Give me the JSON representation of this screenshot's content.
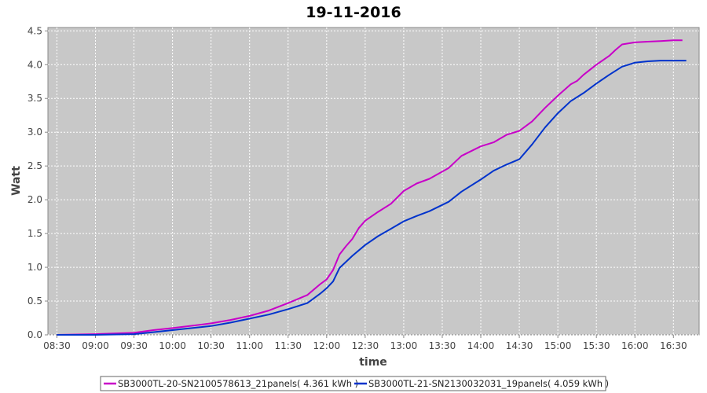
{
  "chart_data": {
    "type": "line",
    "title": "19-11-2016",
    "xlabel": "time",
    "ylabel": "Watt",
    "xlim": [
      "08:23",
      "16:50"
    ],
    "ylim": [
      0,
      4.55
    ],
    "x_ticks": [
      "08:30",
      "09:00",
      "09:30",
      "10:00",
      "10:30",
      "11:00",
      "11:30",
      "12:00",
      "12:30",
      "13:00",
      "13:30",
      "14:00",
      "14:30",
      "15:00",
      "15:30",
      "16:00",
      "16:30"
    ],
    "y_ticks": [
      "0.0",
      "0.5",
      "1.0",
      "1.5",
      "2.0",
      "2.5",
      "3.0",
      "3.5",
      "4.0",
      "4.5"
    ],
    "grid": true,
    "legend_position": "bottom",
    "background": "#c8c8c8",
    "series": [
      {
        "name": "SB3000TL-20-SN2100578613_21panels( 4.361 kWh )",
        "color": "#c800c8",
        "x": [
          "08:30",
          "09:00",
          "09:30",
          "09:45",
          "10:00",
          "10:30",
          "10:45",
          "11:00",
          "11:15",
          "11:30",
          "11:45",
          "11:55",
          "12:00",
          "12:05",
          "12:10",
          "12:15",
          "12:20",
          "12:25",
          "12:30",
          "12:40",
          "12:50",
          "13:00",
          "13:10",
          "13:20",
          "13:35",
          "13:45",
          "14:00",
          "14:10",
          "14:20",
          "14:30",
          "14:40",
          "14:50",
          "15:00",
          "15:10",
          "15:15",
          "15:20",
          "15:30",
          "15:40",
          "15:45",
          "15:50",
          "16:00",
          "16:10",
          "16:20",
          "16:30",
          "16:37"
        ],
        "y": [
          0.0,
          0.01,
          0.03,
          0.07,
          0.1,
          0.17,
          0.22,
          0.28,
          0.36,
          0.47,
          0.59,
          0.75,
          0.82,
          0.96,
          1.19,
          1.31,
          1.42,
          1.58,
          1.69,
          1.82,
          1.94,
          2.13,
          2.24,
          2.31,
          2.47,
          2.65,
          2.79,
          2.85,
          2.96,
          3.02,
          3.16,
          3.36,
          3.54,
          3.71,
          3.76,
          3.85,
          4.0,
          4.13,
          4.22,
          4.3,
          4.33,
          4.34,
          4.35,
          4.36,
          4.36
        ]
      },
      {
        "name": "SB3000TL-21-SN2130032031_19panels( 4.059 kWh )",
        "color": "#0033cc",
        "x": [
          "08:30",
          "09:00",
          "09:30",
          "09:45",
          "10:00",
          "10:30",
          "10:45",
          "11:00",
          "11:15",
          "11:30",
          "11:45",
          "11:55",
          "12:00",
          "12:05",
          "12:10",
          "12:20",
          "12:30",
          "12:40",
          "12:50",
          "13:00",
          "13:10",
          "13:20",
          "13:35",
          "13:45",
          "14:00",
          "14:10",
          "14:20",
          "14:30",
          "14:40",
          "14:50",
          "15:00",
          "15:10",
          "15:15",
          "15:20",
          "15:30",
          "15:40",
          "15:50",
          "15:55",
          "16:00",
          "16:10",
          "16:20",
          "16:30",
          "16:40"
        ],
        "y": [
          0.0,
          0.0,
          0.01,
          0.04,
          0.07,
          0.13,
          0.18,
          0.24,
          0.3,
          0.38,
          0.47,
          0.61,
          0.69,
          0.79,
          0.99,
          1.17,
          1.33,
          1.46,
          1.57,
          1.68,
          1.76,
          1.83,
          1.97,
          2.12,
          2.3,
          2.43,
          2.52,
          2.6,
          2.82,
          3.07,
          3.28,
          3.46,
          3.52,
          3.58,
          3.72,
          3.85,
          3.97,
          4.0,
          4.03,
          4.05,
          4.06,
          4.06,
          4.06
        ]
      }
    ]
  }
}
